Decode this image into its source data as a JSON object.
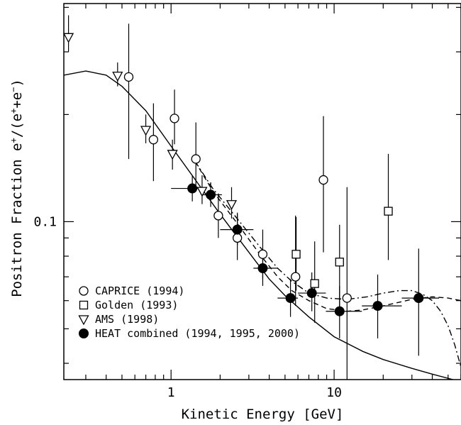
{
  "chart_data": {
    "type": "scatter",
    "title": "",
    "xlabel": "Kinetic Energy [GeV]",
    "ylabel_parts": {
      "main": "Positron Fraction e",
      "sup1": "+",
      "mid": "/(e",
      "sup2": "+",
      "plus": "+e",
      "sup3": "−",
      "close": ")"
    },
    "x_scale": "log",
    "y_scale": "log",
    "xlim": [
      0.22,
      60
    ],
    "ylim": [
      0.036,
      0.41
    ],
    "x_ticks": [
      {
        "value": 1,
        "label": "1"
      },
      {
        "value": 10,
        "label": "10"
      }
    ],
    "y_ticks": [
      {
        "value": 0.1,
        "label": "0.1"
      }
    ],
    "legend_position": "bottom-left",
    "series": [
      {
        "name": "CAPRICE (1994)",
        "marker": "open-circle",
        "points": [
          {
            "x": 0.55,
            "y": 0.255,
            "ylo": 0.15,
            "yhi": 0.36
          },
          {
            "x": 0.78,
            "y": 0.17,
            "ylo": 0.13,
            "yhi": 0.215
          },
          {
            "x": 1.05,
            "y": 0.195,
            "ylo": 0.165,
            "yhi": 0.235
          },
          {
            "x": 1.42,
            "y": 0.15,
            "ylo": 0.125,
            "yhi": 0.19
          },
          {
            "x": 1.95,
            "y": 0.104,
            "ylo": 0.09,
            "yhi": 0.12
          },
          {
            "x": 2.55,
            "y": 0.09,
            "ylo": 0.078,
            "yhi": 0.105
          },
          {
            "x": 3.65,
            "y": 0.081,
            "ylo": 0.069,
            "yhi": 0.095
          },
          {
            "x": 5.8,
            "y": 0.07,
            "ylo": 0.058,
            "yhi": 0.104
          },
          {
            "x": 8.6,
            "y": 0.131,
            "ylo": 0.082,
            "yhi": 0.198
          },
          {
            "x": 12.0,
            "y": 0.061,
            "ylo": 0.036,
            "yhi": 0.125
          }
        ]
      },
      {
        "name": "Golden (1993)",
        "marker": "open-square",
        "points": [
          {
            "x": 5.85,
            "y": 0.081,
            "ylo": 0.064,
            "yhi": 0.103
          },
          {
            "x": 7.6,
            "y": 0.067,
            "ylo": 0.052,
            "yhi": 0.088
          },
          {
            "x": 10.8,
            "y": 0.077,
            "ylo": 0.057,
            "yhi": 0.098
          },
          {
            "x": 21.5,
            "y": 0.107,
            "ylo": 0.078,
            "yhi": 0.155
          }
        ]
      },
      {
        "name": "AMS (1998)",
        "marker": "open-triangle-down",
        "points": [
          {
            "x": 0.235,
            "y": 0.33,
            "ylo": 0.3,
            "yhi": 0.38
          },
          {
            "x": 0.47,
            "y": 0.257,
            "ylo": 0.24,
            "yhi": 0.28
          },
          {
            "x": 0.7,
            "y": 0.181,
            "ylo": 0.166,
            "yhi": 0.2
          },
          {
            "x": 1.02,
            "y": 0.155,
            "ylo": 0.14,
            "yhi": 0.17
          },
          {
            "x": 1.55,
            "y": 0.122,
            "ylo": 0.112,
            "yhi": 0.135
          },
          {
            "x": 2.35,
            "y": 0.112,
            "ylo": 0.102,
            "yhi": 0.125
          }
        ]
      },
      {
        "name": "HEAT combined (1994, 1995, 2000)",
        "marker": "filled-circle",
        "points": [
          {
            "x": 1.35,
            "y": 0.124,
            "ylo": 0.114,
            "yhi": 0.135,
            "xlo": 1.0,
            "xhi": 1.6
          },
          {
            "x": 1.75,
            "y": 0.119,
            "ylo": 0.11,
            "yhi": 0.129,
            "xlo": 1.55,
            "xhi": 2.05
          },
          {
            "x": 2.55,
            "y": 0.095,
            "ylo": 0.086,
            "yhi": 0.106,
            "xlo": 2.0,
            "xhi": 3.2
          },
          {
            "x": 3.65,
            "y": 0.074,
            "ylo": 0.066,
            "yhi": 0.082,
            "xlo": 3.2,
            "xhi": 4.5
          },
          {
            "x": 5.4,
            "y": 0.061,
            "ylo": 0.054,
            "yhi": 0.069,
            "xlo": 4.5,
            "xhi": 6.0
          },
          {
            "x": 7.3,
            "y": 0.063,
            "ylo": 0.056,
            "yhi": 0.072,
            "xlo": 6.0,
            "xhi": 8.9
          },
          {
            "x": 10.8,
            "y": 0.056,
            "ylo": 0.047,
            "yhi": 0.066,
            "xlo": 8.9,
            "xhi": 14.8
          },
          {
            "x": 18.5,
            "y": 0.058,
            "ylo": 0.047,
            "yhi": 0.071,
            "xlo": 14.8,
            "xhi": 26.0
          },
          {
            "x": 33.0,
            "y": 0.061,
            "ylo": 0.042,
            "yhi": 0.084,
            "xlo": 26.0,
            "xhi": 44.0
          }
        ]
      }
    ],
    "curves": [
      {
        "style": "solid",
        "points": [
          [
            0.22,
            0.258
          ],
          [
            0.3,
            0.265
          ],
          [
            0.4,
            0.258
          ],
          [
            0.5,
            0.24
          ],
          [
            0.7,
            0.205
          ],
          [
            1.0,
            0.163
          ],
          [
            1.5,
            0.126
          ],
          [
            2.0,
            0.105
          ],
          [
            3.0,
            0.082
          ],
          [
            4.0,
            0.069
          ],
          [
            5.0,
            0.062
          ],
          [
            7.0,
            0.054
          ],
          [
            10.0,
            0.0475
          ],
          [
            15.0,
            0.0432
          ],
          [
            20.0,
            0.041
          ],
          [
            30.0,
            0.0387
          ],
          [
            40.0,
            0.0373
          ],
          [
            60.0,
            0.0355
          ]
        ]
      },
      {
        "style": "dashed",
        "points": [
          [
            1.4,
            0.148
          ],
          [
            1.8,
            0.122
          ],
          [
            2.5,
            0.1
          ],
          [
            3.5,
            0.081
          ],
          [
            4.5,
            0.07
          ],
          [
            5.5,
            0.064
          ],
          [
            7.0,
            0.06
          ],
          [
            9.0,
            0.057
          ],
          [
            12.0,
            0.056
          ],
          [
            15.0,
            0.0565
          ],
          [
            20.0,
            0.058
          ],
          [
            30.0,
            0.0605
          ],
          [
            40.0,
            0.0615
          ],
          [
            50.0,
            0.061
          ],
          [
            60.0,
            0.06
          ]
        ]
      },
      {
        "style": "dash-dot",
        "points": [
          [
            1.4,
            0.148
          ],
          [
            1.8,
            0.124
          ],
          [
            2.5,
            0.103
          ],
          [
            3.5,
            0.085
          ],
          [
            4.5,
            0.074
          ],
          [
            5.5,
            0.068
          ],
          [
            7.0,
            0.063
          ],
          [
            9.0,
            0.061
          ],
          [
            12.0,
            0.0605
          ],
          [
            16.0,
            0.0615
          ],
          [
            20.0,
            0.063
          ],
          [
            25.0,
            0.064
          ],
          [
            30.0,
            0.064
          ],
          [
            35.0,
            0.0625
          ],
          [
            40.0,
            0.06
          ],
          [
            45.0,
            0.056
          ],
          [
            50.0,
            0.051
          ],
          [
            55.0,
            0.045
          ],
          [
            60.0,
            0.039
          ]
        ]
      }
    ]
  }
}
